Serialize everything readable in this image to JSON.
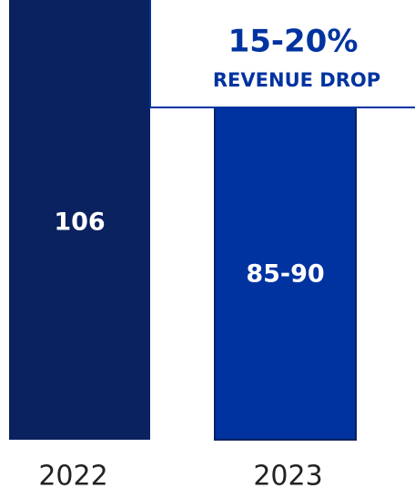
{
  "chart_data": {
    "type": "bar",
    "categories": [
      "2022",
      "2023"
    ],
    "values": [
      106,
      90
    ],
    "value_labels": [
      "106",
      "85-90"
    ],
    "colors": [
      "#0a2260",
      "#0033a0"
    ],
    "annotation": {
      "headline": "15-20%",
      "text": "REVENUE DROP"
    }
  }
}
